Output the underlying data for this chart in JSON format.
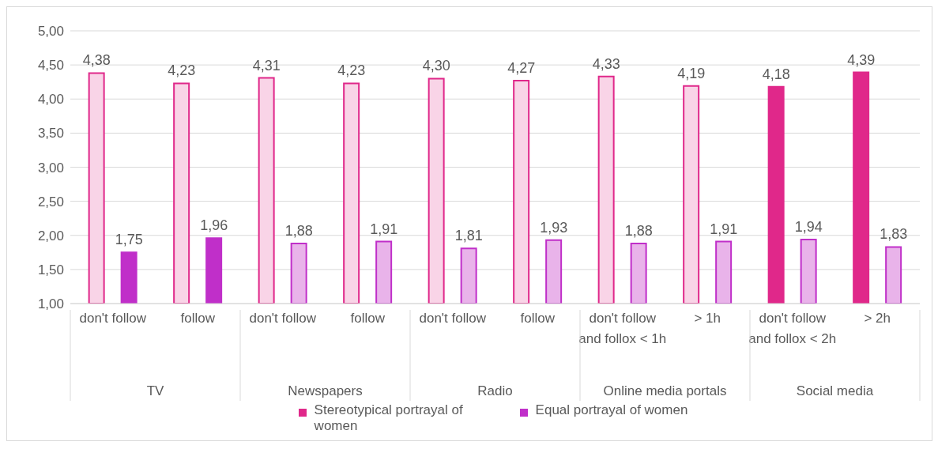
{
  "chart_data": {
    "type": "bar",
    "categories": [
      "don't follow",
      "follow",
      "don't follow",
      "follow",
      "don't follow",
      "follow",
      "don't follow and follox < 1h",
      "> 1h",
      "don't follow and follox < 2h",
      "> 2h"
    ],
    "series": [
      {
        "name": "Stereotypical portrayal of women",
        "color": "#e0288a",
        "colors": [
          "#f9d4e7",
          "#f9d4e7",
          "#f9d4e7",
          "#f9d4e7",
          "#f9d4e7",
          "#f9d4e7",
          "#f9d4e7",
          "#f9d4e7",
          "#e0288a",
          "#e0288a"
        ],
        "values": [
          4.38,
          4.23,
          4.31,
          4.23,
          4.3,
          4.27,
          4.33,
          4.19,
          4.18,
          4.39
        ],
        "value_labels": [
          "4,38",
          "4,23",
          "4,31",
          "4,23",
          "4,30",
          "4,27",
          "4,33",
          "4,19",
          "4,18",
          "4,39"
        ]
      },
      {
        "name": "Equal portrayal of women",
        "color": "#c02fc9",
        "colors": [
          "#c02fc9",
          "#c02fc9",
          "#e9b3ea",
          "#e9b3ea",
          "#e9b3ea",
          "#e9b3ea",
          "#e9b3ea",
          "#e9b3ea",
          "#e9b3ea",
          "#e9b3ea"
        ],
        "values": [
          1.75,
          1.96,
          1.88,
          1.91,
          1.81,
          1.93,
          1.88,
          1.91,
          1.94,
          1.83
        ],
        "value_labels": [
          "1,75",
          "1,96",
          "1,88",
          "1,91",
          "1,81",
          "1,93",
          "1,88",
          "1,91",
          "1,94",
          "1,83"
        ]
      }
    ],
    "annotations": [
      "TV",
      "Newspapers",
      "Radio",
      "Online media portals",
      "Social media"
    ],
    "ylim": [
      1,
      5
    ],
    "yticks": [
      {
        "value": 1,
        "label": "1,00"
      },
      {
        "value": 1.5,
        "label": "1,50"
      },
      {
        "value": 2,
        "label": "2,00"
      },
      {
        "value": 2.5,
        "label": "2,50"
      },
      {
        "value": 3,
        "label": "3,00"
      },
      {
        "value": 3.5,
        "label": "3,50"
      },
      {
        "value": 4,
        "label": "4,00"
      },
      {
        "value": 4.5,
        "label": "4,50"
      },
      {
        "value": 5,
        "label": "5,00"
      }
    ],
    "grid": "y",
    "legend": "bottom"
  }
}
